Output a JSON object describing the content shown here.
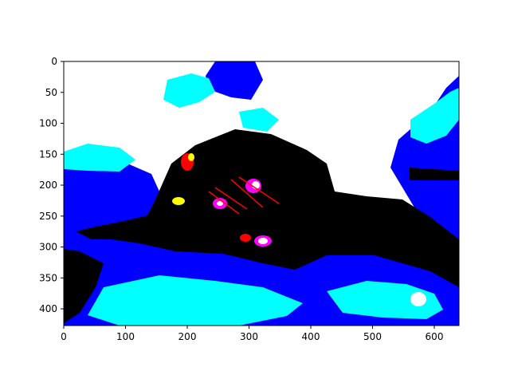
{
  "chart_data": {
    "type": "heatmap",
    "title": "",
    "xlabel": "",
    "ylabel": "",
    "description_kind": "image shown with imshow, posterized palette",
    "xlim": [
      0,
      640
    ],
    "ylim": [
      427,
      0
    ],
    "xticks": [
      0,
      100,
      200,
      300,
      400,
      500,
      600
    ],
    "yticks": [
      0,
      50,
      100,
      150,
      200,
      250,
      300,
      350,
      400
    ],
    "grid": false,
    "legend": "none",
    "palette": {
      "background": "#ffffff",
      "cyan": "#00ffff",
      "blue": "#0000ff",
      "black": "#000000",
      "red": "#ff0000",
      "yellow": "#ffff00",
      "magenta": "#ff00ff"
    }
  }
}
